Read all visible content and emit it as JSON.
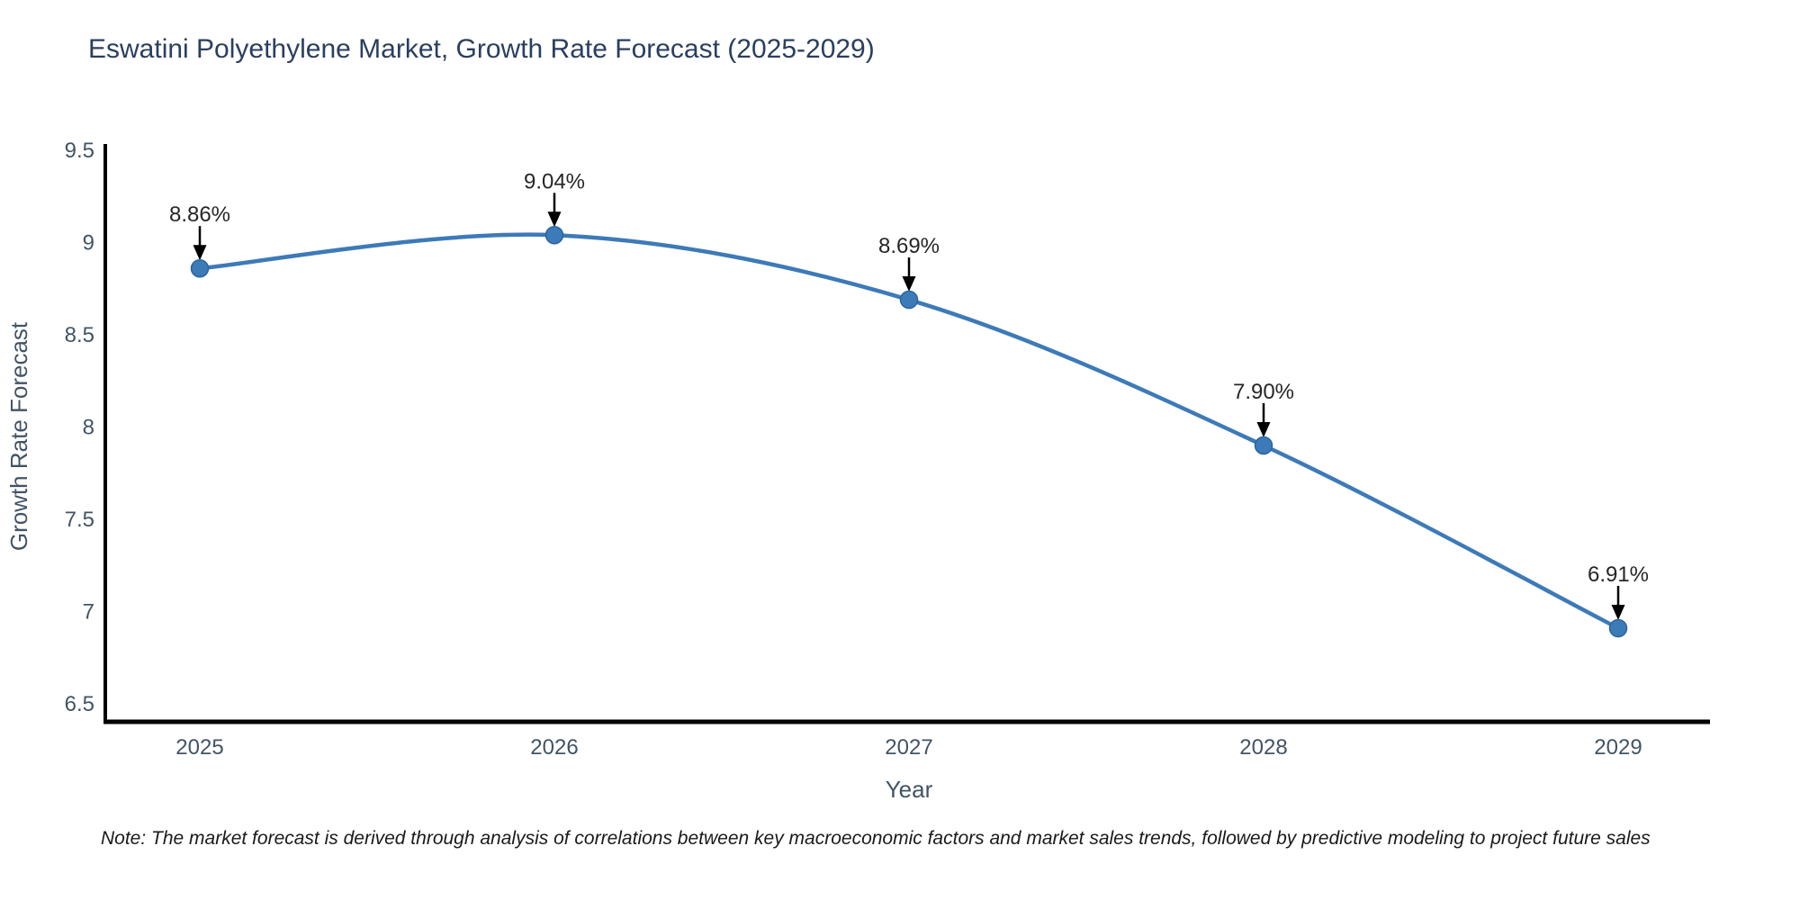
{
  "title": "Eswatini Polyethylene Market, Growth Rate Forecast (2025-2029)",
  "note": "Note: The market forecast is derived through analysis of correlations between key macroeconomic factors and market sales trends, followed by predictive modeling to project future sales",
  "chart_data": {
    "type": "line",
    "x": [
      2025,
      2026,
      2027,
      2028,
      2029
    ],
    "categories": [
      "2025",
      "2026",
      "2027",
      "2028",
      "2029"
    ],
    "values": [
      8.86,
      9.04,
      8.69,
      7.9,
      6.91
    ],
    "point_labels": [
      "8.86%",
      "9.04%",
      "8.69%",
      "7.90%",
      "6.91%"
    ],
    "title": "Eswatini Polyethylene Market, Growth Rate Forecast (2025-2029)",
    "xlabel": "Year",
    "ylabel": "Growth Rate Forecast",
    "ylim": [
      6.4,
      9.55
    ],
    "yticks": [
      6.5,
      7,
      7.5,
      8,
      8.5,
      9,
      9.5
    ],
    "ytick_labels": [
      "6.5",
      "7",
      "7.5",
      "8",
      "8.5",
      "9",
      "9.5"
    ],
    "grid": false,
    "legend": "none",
    "curve": "spline",
    "annotations_arrow": "down-to-point"
  },
  "colors": {
    "line": "#3d7ab8",
    "marker": "#3d7ab8",
    "marker_edge": "#2a659f",
    "spine": "#000000",
    "arrow": "#000000",
    "title_text": "#2a3f5f",
    "tick_text": "#425466",
    "annotation_text": "#262626",
    "background": "#ffffff"
  }
}
